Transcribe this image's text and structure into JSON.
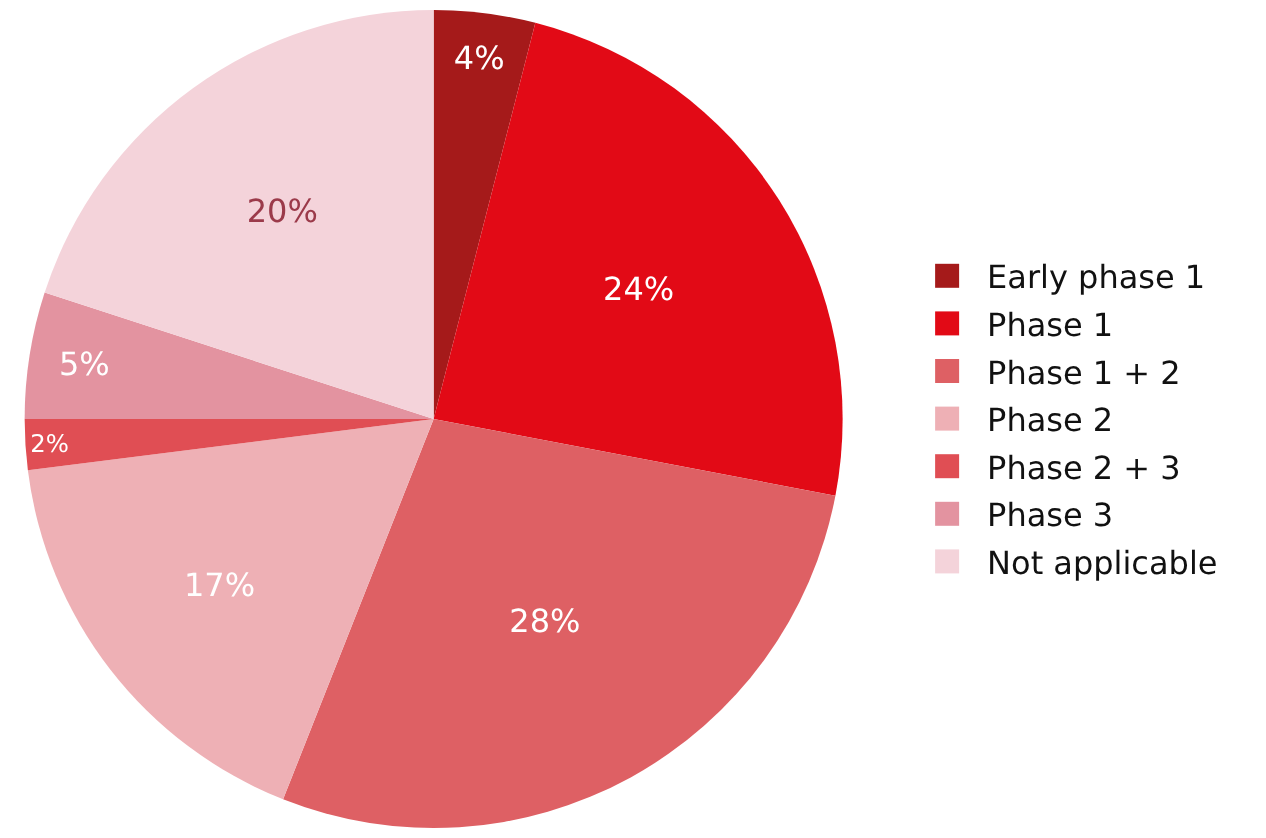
{
  "chart_data": {
    "type": "pie",
    "categories": [
      "Early phase 1",
      "Phase 1",
      "Phase 1 + 2",
      "Phase 2",
      "Phase 2 + 3",
      "Phase 3",
      "Not applicable"
    ],
    "values": [
      4,
      24,
      28,
      17,
      2,
      5,
      20
    ],
    "value_labels": [
      "4%",
      "24%",
      "28%",
      "17%",
      "2%",
      "5%",
      "20%"
    ],
    "colors": [
      "#a51a1a",
      "#e20a16",
      "#de6064",
      "#eeb0b5",
      "#e04e54",
      "#e393a0",
      "#f4d3da"
    ],
    "legend": "right"
  }
}
